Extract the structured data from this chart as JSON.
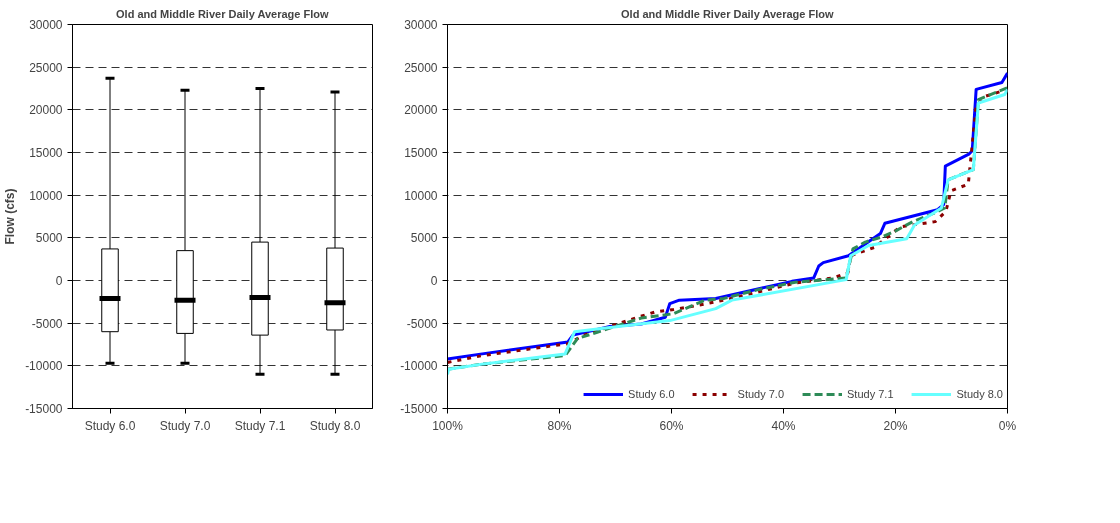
{
  "chart_data": [
    {
      "type": "box",
      "title": "Old and Middle River Daily Average Flow",
      "ylabel": "Flow (cfs)",
      "categories": [
        "Study 6.0",
        "Study 7.0",
        "Study 7.1",
        "Study 8.0"
      ],
      "boxes": [
        {
          "low": -9700,
          "q1": -6000,
          "median": -2100,
          "q3": 3700,
          "high": 23700
        },
        {
          "low": -9700,
          "q1": -6200,
          "median": -2300,
          "q3": 3500,
          "high": 22300
        },
        {
          "low": -11000,
          "q1": -6400,
          "median": -2000,
          "q3": 4500,
          "high": 22500
        },
        {
          "low": -11000,
          "q1": -5800,
          "median": -2600,
          "q3": 3800,
          "high": 22100
        }
      ],
      "ylim": [
        -15000,
        30000
      ],
      "yticks": [
        -15000,
        -10000,
        -5000,
        0,
        5000,
        10000,
        15000,
        20000,
        25000,
        30000
      ],
      "grid": "y",
      "legend": false
    },
    {
      "type": "line",
      "title": "Old and Middle River Daily Average Flow",
      "xlim": [
        100,
        0
      ],
      "xticks": [
        {
          "value": 100,
          "label": "100%"
        },
        {
          "value": 80,
          "label": "80%"
        },
        {
          "value": 60,
          "label": "60%"
        },
        {
          "value": 40,
          "label": "40%"
        },
        {
          "value": 20,
          "label": "20%"
        },
        {
          "value": 0,
          "label": "0%"
        }
      ],
      "ylim": [
        -15000,
        30000
      ],
      "yticks": [
        -15000,
        -10000,
        -5000,
        0,
        5000,
        10000,
        15000,
        20000,
        25000,
        30000
      ],
      "grid": "y",
      "legend": "bottom",
      "series": [
        {
          "name": "Study 6.0",
          "color": "#0000ff",
          "line_style": "solid",
          "x": [
            100,
            93.8,
            78.5,
            77.6,
            71,
            65.4,
            61.1,
            60.3,
            58.6,
            52.1,
            38.5,
            34.6,
            33.7,
            32.9,
            28.4,
            22.7,
            21.9,
            12.5,
            11.4,
            11.1,
            6.9,
            6.3,
            5.6,
            1,
            0
          ],
          "values": [
            -9200,
            -8600,
            -7200,
            -6400,
            -5400,
            -5100,
            -4300,
            -2700,
            -2300,
            -2100,
            -100,
            300,
            1700,
            2100,
            2900,
            5500,
            6700,
            8300,
            8900,
            13400,
            14800,
            15200,
            22400,
            23200,
            24300
          ]
        },
        {
          "name": "Study 7.0",
          "color": "#8b0000",
          "line_style": "dotted",
          "x": [
            100,
            93.8,
            78.5,
            75.6,
            66,
            63,
            59.6,
            56.8,
            50.6,
            37.9,
            31.1,
            28.5,
            28,
            23.7,
            19.1,
            12.9,
            11,
            10.1,
            7,
            5.6,
            3.9,
            0
          ],
          "values": [
            -9600,
            -8800,
            -7400,
            -6400,
            -4300,
            -3700,
            -3400,
            -3100,
            -2300,
            -300,
            300,
            900,
            2900,
            3900,
            6300,
            6900,
            8100,
            10500,
            11300,
            20500,
            21600,
            22400
          ]
        },
        {
          "name": "Study 7.1",
          "color": "#2e8b57",
          "line_style": "dashed",
          "x": [
            100,
            93.8,
            79,
            76.8,
            73.4,
            65.4,
            62,
            59.7,
            54,
            50.6,
            44.7,
            37.9,
            28.8,
            27.6,
            25.4,
            22.5,
            20.3,
            16.9,
            12.4,
            11.2,
            10.6,
            6.1,
            5.2,
            0
          ],
          "values": [
            -10400,
            -9800,
            -8800,
            -6800,
            -6100,
            -4400,
            -4100,
            -3900,
            -2300,
            -2100,
            -1100,
            -200,
            300,
            3700,
            4500,
            5100,
            5700,
            6900,
            8100,
            8500,
            11800,
            13000,
            21200,
            22600
          ]
        },
        {
          "name": "Study 8.0",
          "color": "#66ffff",
          "line_style": "solid",
          "x": [
            100,
            99.8,
            93.8,
            79,
            77.3,
            71,
            60.3,
            52.1,
            49.2,
            28.8,
            28,
            24.8,
            18,
            16.6,
            11.8,
            10.6,
            6.1,
            5.2,
            0.5,
            0
          ],
          "values": [
            -11000,
            -10400,
            -9800,
            -8600,
            -6000,
            -5500,
            -4700,
            -3300,
            -2300,
            100,
            2900,
            4100,
            4900,
            6500,
            8500,
            11800,
            13000,
            20800,
            21800,
            22400
          ]
        }
      ]
    }
  ]
}
